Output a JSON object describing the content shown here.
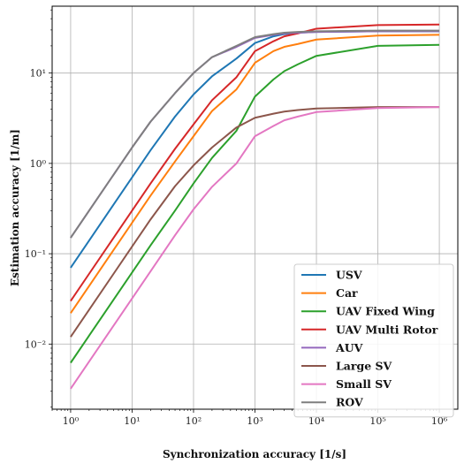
{
  "chart_data": {
    "type": "line",
    "xscale": "log",
    "yscale": "log",
    "xlim": [
      0.5,
      2000000
    ],
    "ylim": [
      0.0019,
      55
    ],
    "grid": true,
    "legend_position": "lower-right",
    "xlabel": "Synchronization accuracy [1/s]",
    "ylabel": "Estimation accuracy [1/m]",
    "xticks": [
      {
        "value": 1,
        "label": "10⁰"
      },
      {
        "value": 10,
        "label": "10¹"
      },
      {
        "value": 100,
        "label": "10²"
      },
      {
        "value": 1000,
        "label": "10³"
      },
      {
        "value": 10000,
        "label": "10⁴"
      },
      {
        "value": 100000,
        "label": "10⁵"
      },
      {
        "value": 1000000,
        "label": "10⁶"
      }
    ],
    "yticks": [
      {
        "value": 0.01,
        "label": "10⁻²"
      },
      {
        "value": 0.1,
        "label": "10⁻¹"
      },
      {
        "value": 1,
        "label": "10⁰"
      },
      {
        "value": 10,
        "label": "10¹"
      }
    ],
    "x": [
      1,
      2,
      5,
      10,
      20,
      50,
      100,
      200,
      500,
      1000,
      2000,
      3000,
      5000,
      10000,
      100000,
      1000000
    ],
    "series": [
      {
        "name": "USV",
        "color": "#1f77b4",
        "values": [
          0.07,
          0.14,
          0.35,
          0.7,
          1.4,
          3.3,
          5.8,
          9.2,
          14.5,
          21.5,
          25.5,
          27,
          28,
          28.5,
          29,
          29
        ]
      },
      {
        "name": "Car",
        "color": "#ff7f0e",
        "values": [
          0.022,
          0.044,
          0.11,
          0.22,
          0.44,
          1.05,
          2.0,
          3.8,
          6.6,
          13.0,
          17.5,
          19.5,
          21,
          23.5,
          26,
          26.5
        ]
      },
      {
        "name": "UAV Fixed Wing",
        "color": "#2ca02c",
        "values": [
          0.0062,
          0.0124,
          0.031,
          0.062,
          0.124,
          0.3,
          0.6,
          1.15,
          2.3,
          5.5,
          8.5,
          10.5,
          12.5,
          15.5,
          20,
          20.5
        ]
      },
      {
        "name": "UAV Multi Rotor",
        "color": "#d62728",
        "values": [
          0.03,
          0.06,
          0.15,
          0.3,
          0.6,
          1.45,
          2.7,
          5.0,
          9.0,
          17.5,
          22.5,
          25.5,
          27.5,
          31,
          34,
          34.5
        ]
      },
      {
        "name": "AUV",
        "color": "#9467bd",
        "values": [
          0.15,
          0.3,
          0.75,
          1.5,
          2.9,
          6.0,
          10.0,
          15.0,
          19.5,
          24.5,
          26.5,
          27.5,
          28,
          28.5,
          29,
          29
        ]
      },
      {
        "name": "Large SV",
        "color": "#8c564b",
        "values": [
          0.012,
          0.024,
          0.06,
          0.12,
          0.24,
          0.56,
          0.95,
          1.5,
          2.5,
          3.2,
          3.55,
          3.75,
          3.9,
          4.05,
          4.2,
          4.2
        ]
      },
      {
        "name": "Small SV",
        "color": "#e377c2",
        "values": [
          0.0032,
          0.0064,
          0.016,
          0.032,
          0.064,
          0.16,
          0.31,
          0.55,
          1.0,
          2.0,
          2.6,
          3.0,
          3.3,
          3.7,
          4.1,
          4.2
        ]
      },
      {
        "name": "ROV",
        "color": "#7f7f7f",
        "values": [
          0.15,
          0.3,
          0.75,
          1.5,
          2.9,
          6.0,
          10.0,
          15.0,
          20.0,
          25.0,
          27.0,
          28.0,
          28.5,
          29,
          29.5,
          29.5
        ]
      }
    ]
  }
}
